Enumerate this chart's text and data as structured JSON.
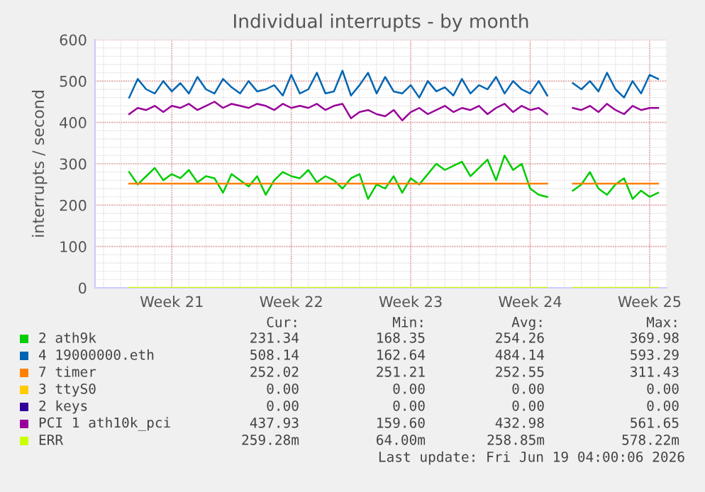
{
  "chart_data": {
    "type": "line",
    "title": "Individual interrupts - by month",
    "ylabel": "interrupts / second",
    "x": [
      "2026-05-19T00:00",
      "2026-05-19T12:00",
      "2026-05-20T00:00",
      "2026-05-20T12:00",
      "2026-05-21T00:00",
      "2026-05-21T12:00",
      "2026-05-22T00:00",
      "2026-05-22T12:00",
      "2026-05-23T00:00",
      "2026-05-23T12:00",
      "2026-05-24T00:00",
      "2026-05-24T12:00",
      "2026-05-25T00:00",
      "2026-05-25T12:00",
      "2026-05-26T00:00",
      "2026-05-26T12:00",
      "2026-05-27T00:00",
      "2026-05-27T12:00",
      "2026-05-28T00:00",
      "2026-05-28T12:00",
      "2026-05-29T00:00",
      "2026-05-29T12:00",
      "2026-05-30T00:00",
      "2026-05-30T12:00",
      "2026-05-31T00:00",
      "2026-05-31T12:00",
      "2026-06-01T00:00",
      "2026-06-01T12:00",
      "2026-06-02T00:00",
      "2026-06-02T12:00",
      "2026-06-03T00:00",
      "2026-06-03T12:00",
      "2026-06-04T00:00",
      "2026-06-04T12:00",
      "2026-06-05T00:00",
      "2026-06-05T12:00",
      "2026-06-06T00:00",
      "2026-06-06T12:00",
      "2026-06-07T00:00",
      "2026-06-07T12:00",
      "2026-06-08T00:00",
      "2026-06-08T12:00",
      "2026-06-09T00:00",
      "2026-06-09T12:00",
      "2026-06-10T00:00",
      "2026-06-10T12:00",
      "2026-06-11T00:00",
      "2026-06-11T12:00",
      "2026-06-12T00:00",
      "2026-06-12T12:00",
      "2026-06-13T00:00",
      "2026-06-13T12:00",
      "2026-06-14T00:00",
      "2026-06-14T12:00",
      "2026-06-15T00:00",
      "2026-06-15T12:00",
      "2026-06-16T00:00",
      "2026-06-16T12:00",
      "2026-06-17T00:00",
      "2026-06-17T12:00",
      "2026-06-18T00:00",
      "2026-06-18T12:00",
      "2026-06-19T00:00"
    ],
    "series": [
      {
        "name": "2 ath9k",
        "color": "#00cc00",
        "values": [
          280,
          250,
          270,
          290,
          260,
          275,
          265,
          285,
          255,
          270,
          265,
          230,
          275,
          260,
          245,
          270,
          225,
          260,
          280,
          270,
          265,
          285,
          255,
          270,
          260,
          240,
          265,
          275,
          215,
          250,
          240,
          270,
          230,
          265,
          250,
          275,
          300,
          285,
          295,
          305,
          270,
          290,
          310,
          260,
          320,
          285,
          300,
          240,
          225,
          220,
          null,
          null,
          235,
          250,
          280,
          240,
          225,
          250,
          265,
          215,
          235,
          220,
          230
        ]
      },
      {
        "name": "4 19000000.eth",
        "color": "#0066b3",
        "values": [
          460,
          505,
          480,
          470,
          500,
          475,
          495,
          470,
          510,
          480,
          470,
          505,
          485,
          470,
          500,
          475,
          480,
          490,
          465,
          515,
          470,
          480,
          520,
          470,
          475,
          525,
          465,
          490,
          520,
          470,
          510,
          475,
          470,
          490,
          460,
          500,
          475,
          485,
          465,
          505,
          470,
          490,
          480,
          510,
          470,
          500,
          480,
          470,
          500,
          465,
          null,
          null,
          495,
          480,
          500,
          475,
          520,
          480,
          460,
          500,
          470,
          515,
          505
        ]
      },
      {
        "name": "7 timer",
        "color": "#ff8000",
        "values": [
          252,
          252,
          252,
          252,
          252,
          252,
          252,
          252,
          252,
          252,
          252,
          252,
          252,
          252,
          252,
          252,
          252,
          252,
          252,
          252,
          252,
          252,
          252,
          252,
          252,
          252,
          252,
          252,
          252,
          252,
          252,
          252,
          252,
          252,
          252,
          252,
          252,
          252,
          252,
          252,
          252,
          252,
          252,
          252,
          252,
          252,
          252,
          252,
          252,
          252,
          null,
          null,
          252,
          252,
          252,
          252,
          252,
          252,
          252,
          252,
          252,
          252,
          252
        ]
      },
      {
        "name": "3 ttyS0",
        "color": "#ffcc00",
        "values": [
          null,
          null,
          null,
          null,
          null,
          null,
          null,
          null,
          null,
          null,
          null,
          null,
          null,
          null,
          null,
          null,
          null,
          null,
          null,
          null,
          null,
          null,
          null,
          null,
          null,
          null,
          null,
          null,
          null,
          null,
          null,
          null,
          null,
          null,
          null,
          null,
          null,
          null,
          null,
          null,
          null,
          null,
          null,
          null,
          null,
          null,
          null,
          null,
          null,
          null,
          null,
          null,
          null,
          null,
          null,
          null,
          null,
          null,
          null,
          null,
          null,
          null,
          null
        ]
      },
      {
        "name": "2 keys",
        "color": "#330099",
        "values": [
          null,
          null,
          null,
          null,
          null,
          null,
          null,
          null,
          null,
          null,
          null,
          null,
          null,
          null,
          null,
          null,
          null,
          null,
          null,
          null,
          null,
          null,
          null,
          null,
          null,
          null,
          null,
          null,
          null,
          null,
          null,
          null,
          null,
          null,
          null,
          null,
          null,
          null,
          null,
          null,
          null,
          null,
          null,
          null,
          null,
          null,
          null,
          null,
          null,
          null,
          null,
          null,
          null,
          null,
          null,
          null,
          null,
          null,
          null,
          null,
          null,
          null,
          null
        ]
      },
      {
        "name": "PCI 1 ath10k_pci",
        "color": "#990099",
        "values": [
          420,
          435,
          430,
          440,
          425,
          440,
          435,
          445,
          430,
          440,
          450,
          435,
          445,
          440,
          435,
          445,
          440,
          430,
          445,
          435,
          440,
          435,
          445,
          430,
          440,
          445,
          410,
          425,
          430,
          420,
          415,
          430,
          405,
          425,
          435,
          420,
          430,
          440,
          425,
          435,
          430,
          440,
          420,
          435,
          445,
          425,
          440,
          430,
          435,
          420,
          null,
          null,
          435,
          430,
          440,
          425,
          445,
          430,
          420,
          440,
          430,
          435,
          435
        ]
      },
      {
        "name": "ERR",
        "color": "#ccff00",
        "values": [
          0,
          0,
          0,
          0,
          0,
          0,
          0,
          0,
          0,
          0,
          0,
          0,
          0,
          0,
          0,
          0,
          0,
          0,
          0,
          0,
          0,
          0,
          0,
          0,
          0,
          0,
          0,
          0,
          0,
          0,
          0,
          0,
          0,
          0,
          0,
          0,
          0,
          0,
          0,
          0,
          0,
          0,
          0,
          0,
          0,
          0,
          0,
          0,
          0,
          0,
          null,
          null,
          0,
          0,
          0,
          0,
          0,
          0,
          0,
          0,
          0,
          0,
          0
        ]
      }
    ],
    "xlim": [
      "2026-05-17T00:00",
      "2026-06-19T12:00"
    ],
    "xticks": [
      {
        "value": "2026-05-21T12:00",
        "label": "Week 21"
      },
      {
        "value": "2026-05-28T12:00",
        "label": "Week 22"
      },
      {
        "value": "2026-06-04T12:00",
        "label": "Week 23"
      },
      {
        "value": "2026-06-11T12:00",
        "label": "Week 24"
      },
      {
        "value": "2026-06-18T12:00",
        "label": "Week 25"
      }
    ],
    "ylim": [
      0,
      600
    ],
    "yticks": [
      0,
      100,
      200,
      300,
      400,
      500,
      600
    ],
    "grid": true,
    "legend": "bottom",
    "marker": "none",
    "line_style": "solid",
    "annotations": [
      "Cur:",
      "Min:",
      "Avg:",
      "Max:",
      "231.34",
      "168.35",
      "254.26",
      "369.98",
      "508.14",
      "162.64",
      "484.14",
      "593.29",
      "252.02",
      "251.21",
      "252.55",
      "311.43",
      "0.00",
      "0.00",
      "0.00",
      "0.00",
      "0.00",
      "0.00",
      "0.00",
      "0.00",
      "437.93",
      "159.60",
      "432.98",
      "561.65",
      "259.28m",
      "64.00m",
      "258.85m",
      "578.22m",
      "Last update: Fri Jun 19 04:00:06 2026"
    ]
  }
}
